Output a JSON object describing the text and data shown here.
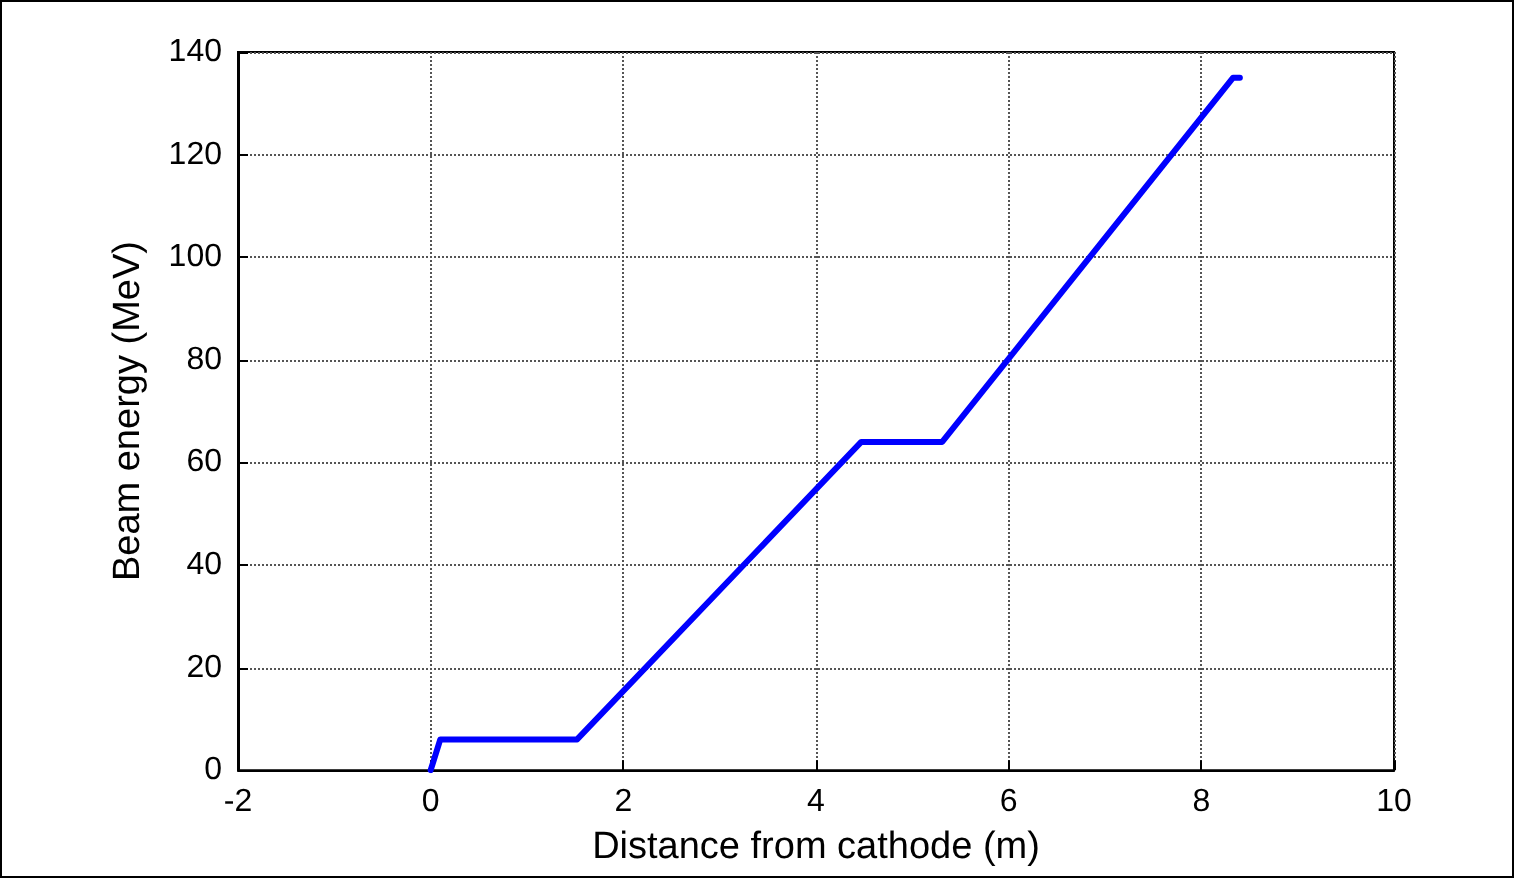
{
  "chart_data": {
    "type": "line",
    "xlabel": "Distance from cathode (m)",
    "ylabel": "Beam energy (MeV)",
    "series": [
      {
        "color": "#0000ff",
        "x": [
          0,
          0.1,
          1.52,
          4.47,
          5.31,
          8.33,
          8.4
        ],
        "values": [
          0,
          6,
          6,
          64,
          64,
          135,
          135
        ]
      }
    ],
    "xlim": [
      -2,
      10
    ],
    "xticks": [
      -2,
      0,
      2,
      4,
      6,
      8,
      10
    ],
    "ylim": [
      0,
      140
    ],
    "yticks": [
      0,
      20,
      40,
      60,
      80,
      100,
      120,
      140
    ],
    "grid": true,
    "marker": "none",
    "line_style": "solid"
  }
}
